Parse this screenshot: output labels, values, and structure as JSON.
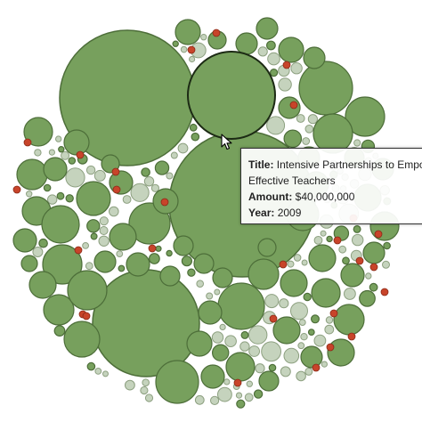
{
  "visualization": {
    "colors": {
      "grant_fill": "#77a05d",
      "grant_stroke": "#4d6e39",
      "minor_fill": "#c5d3bd",
      "highlight_fill": "#c8442a"
    }
  },
  "tooltip": {
    "title_label": "Title:",
    "title_value": "Intensive Partnerships to Empower",
    "title_value_line2": "Effective Teachers",
    "amount_label": "Amount:",
    "amount_value": "$40,000,000",
    "year_label": "Year:",
    "year_value": "2009"
  },
  "cursor": {
    "icon": "arrow-cursor-icon"
  }
}
